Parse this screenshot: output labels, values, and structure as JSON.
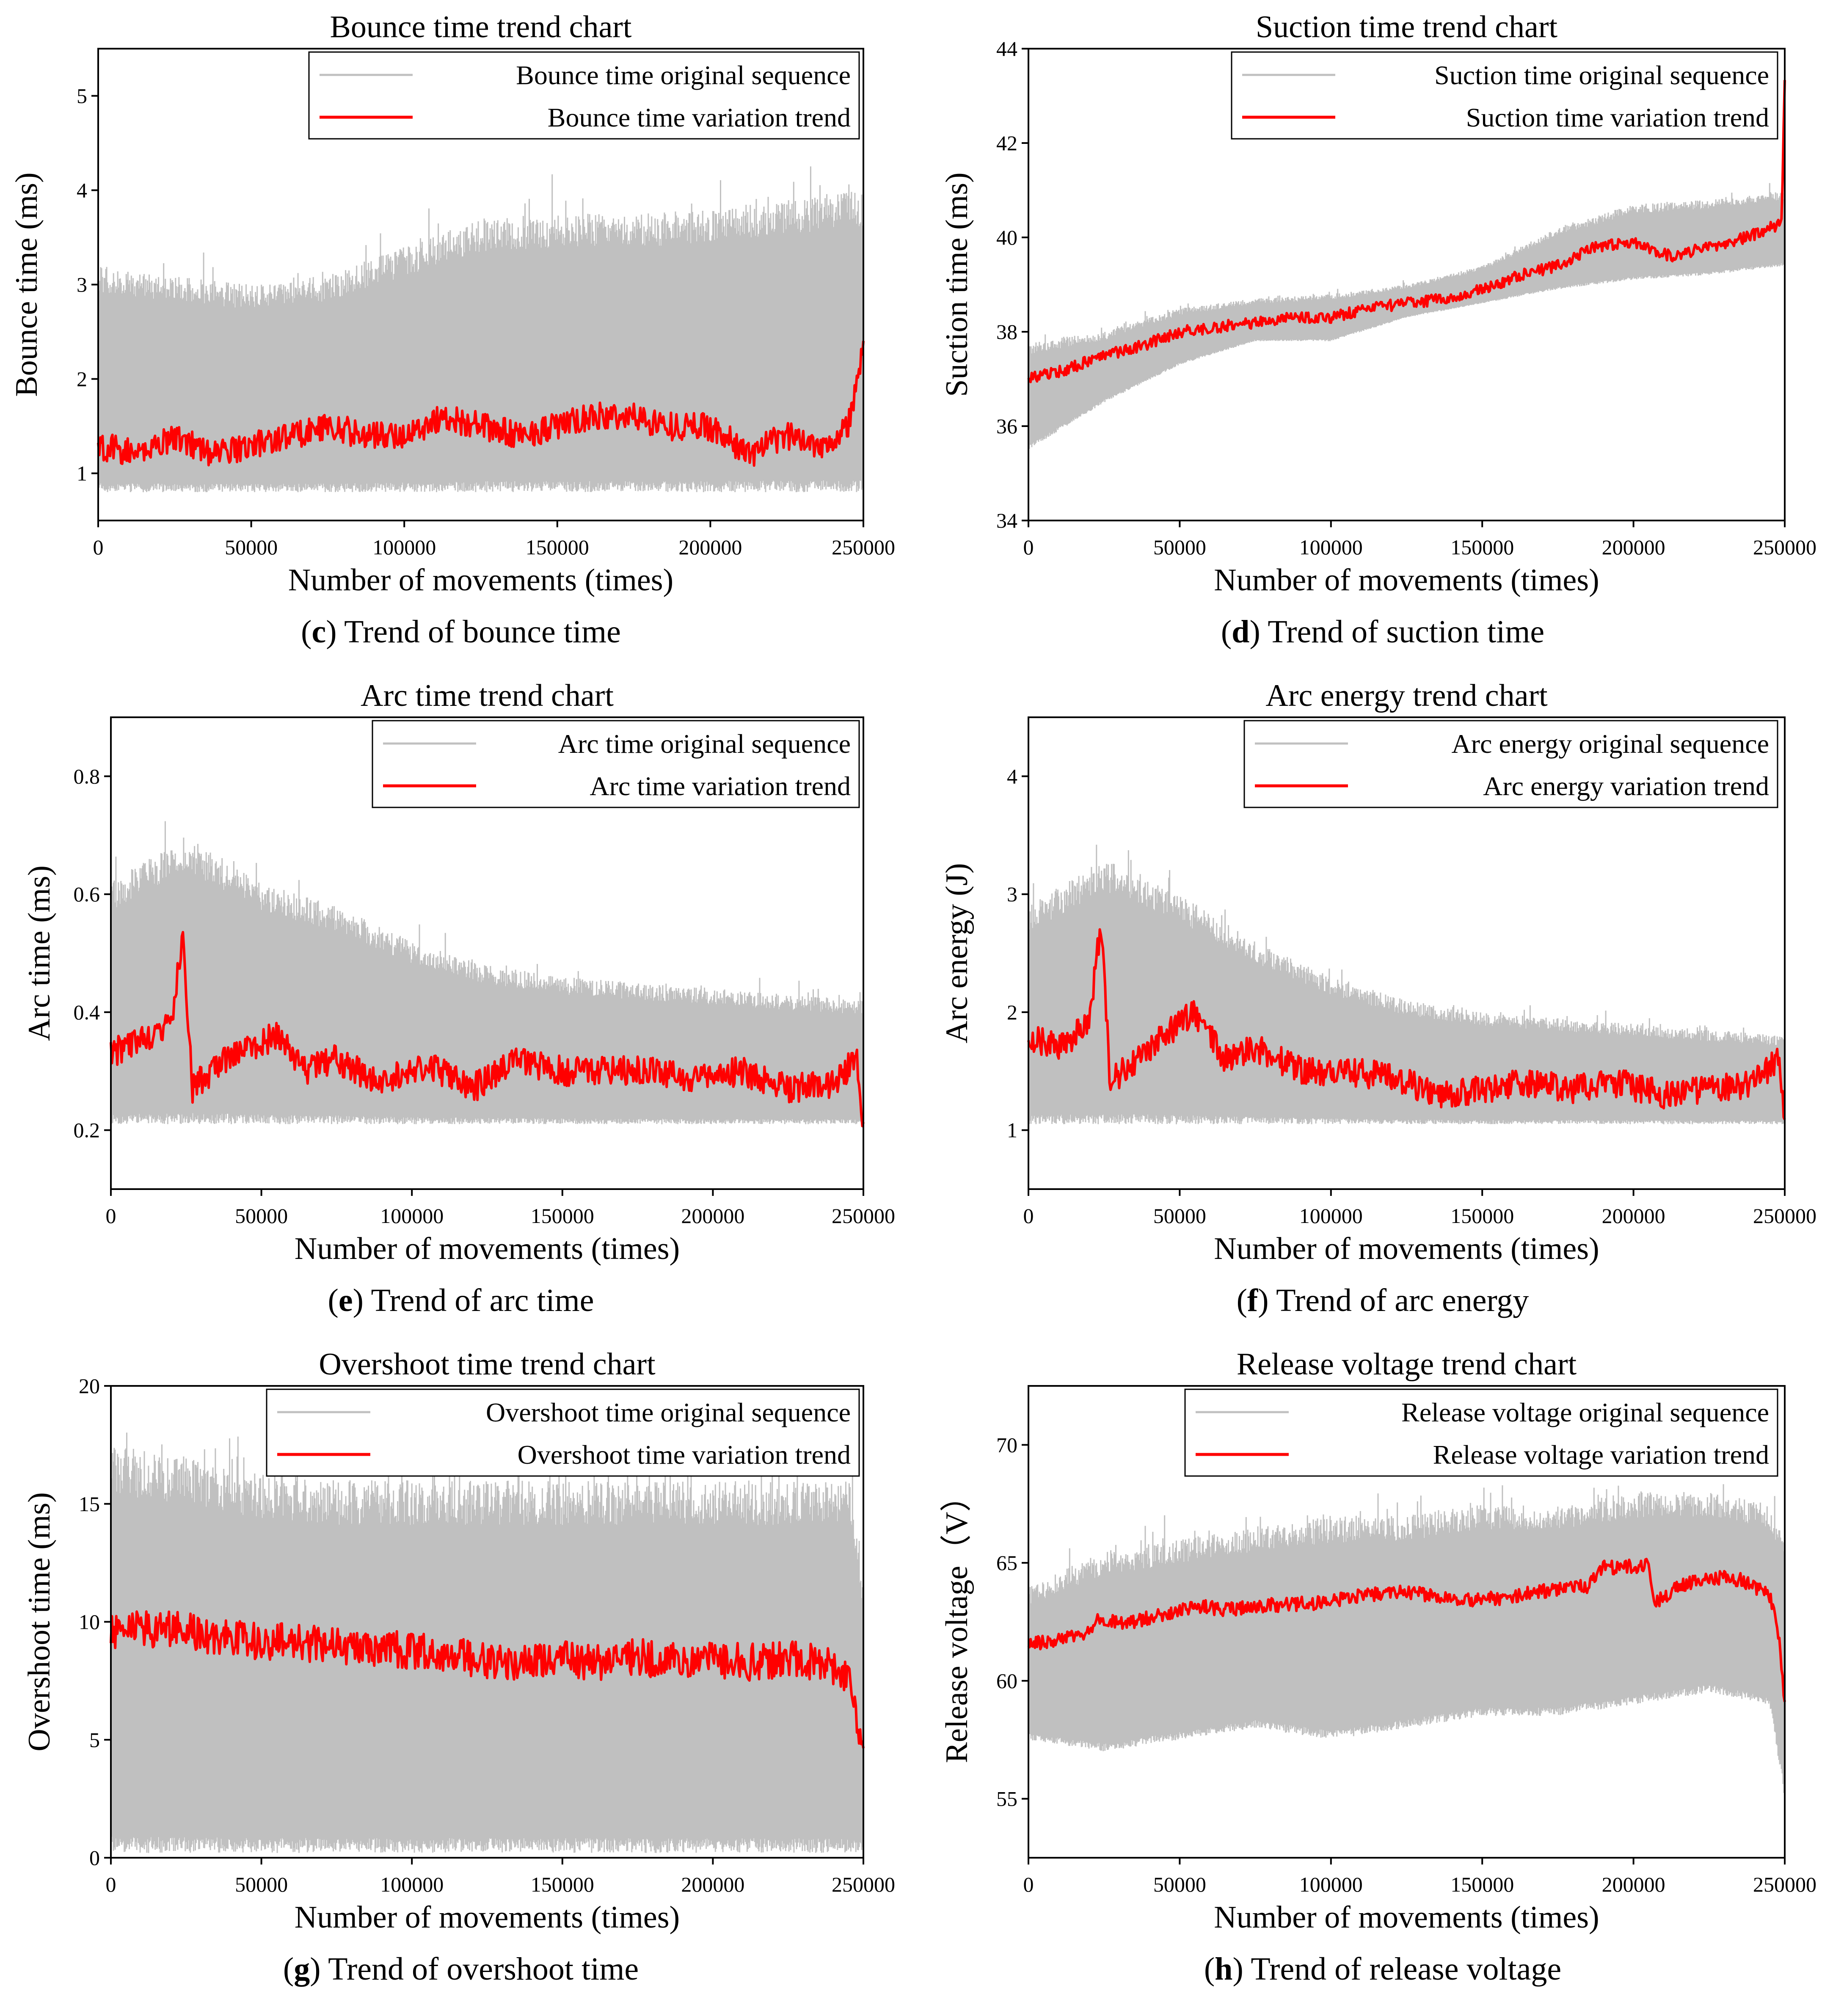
{
  "colors": {
    "original": "#c0c0c0",
    "trend": "#ff0000",
    "axis": "#000000"
  },
  "captions": [
    {
      "letter": "c",
      "text": " Trend of bounce time"
    },
    {
      "letter": "d",
      "text": " Trend of suction time"
    },
    {
      "letter": "e",
      "text": " Trend of arc time"
    },
    {
      "letter": "f",
      "text": " Trend of arc energy"
    },
    {
      "letter": "g",
      "text": " Trend of overshoot time"
    },
    {
      "letter": "h",
      "text": " Trend of release voltage"
    }
  ],
  "chart_data": [
    {
      "type": "line",
      "title": "Bounce time trend chart",
      "xlabel": "Number of movements (times)",
      "ylabel": "Bounce time (ms)",
      "xlim": [
        0,
        250000
      ],
      "ylim": [
        0.5,
        5.5
      ],
      "xticks": [
        0,
        50000,
        100000,
        150000,
        200000,
        250000
      ],
      "yticks": [
        1,
        2,
        3,
        4,
        5
      ],
      "legend_position": "top-right",
      "series": [
        {
          "name": "Bounce time original sequence",
          "style": "band",
          "x": [
            0,
            25000,
            50000,
            75000,
            100000,
            125000,
            150000,
            175000,
            200000,
            225000,
            250000
          ],
          "low": [
            0.8,
            0.8,
            0.8,
            0.8,
            0.8,
            0.8,
            0.8,
            0.8,
            0.8,
            0.8,
            0.8
          ],
          "high": [
            3.2,
            3.1,
            3.0,
            3.1,
            3.4,
            3.7,
            3.75,
            3.75,
            3.8,
            3.9,
            4.0
          ]
        },
        {
          "name": "Bounce time variation trend",
          "style": "line",
          "x": [
            0,
            12500,
            25000,
            37500,
            50000,
            62500,
            75000,
            87500,
            100000,
            112500,
            125000,
            137500,
            150000,
            162500,
            175000,
            187500,
            200000,
            212500,
            225000,
            237500,
            245000,
            250000
          ],
          "y": [
            1.3,
            1.2,
            1.4,
            1.2,
            1.3,
            1.4,
            1.5,
            1.4,
            1.4,
            1.6,
            1.5,
            1.4,
            1.5,
            1.6,
            1.6,
            1.5,
            1.5,
            1.2,
            1.4,
            1.3,
            1.5,
            2.3
          ],
          "noise": 0.15
        }
      ]
    },
    {
      "type": "line",
      "title": "Suction time trend chart",
      "xlabel": "Number of movements (times)",
      "ylabel": "Suction time (ms)",
      "xlim": [
        0,
        250000
      ],
      "ylim": [
        34,
        44
      ],
      "xticks": [
        0,
        50000,
        100000,
        150000,
        200000,
        250000
      ],
      "yticks": [
        34,
        36,
        38,
        40,
        42,
        44
      ],
      "legend_position": "top-right",
      "series": [
        {
          "name": "Suction time original sequence",
          "style": "band",
          "x": [
            0,
            25000,
            50000,
            75000,
            100000,
            125000,
            150000,
            175000,
            200000,
            225000,
            250000
          ],
          "low": [
            35.5,
            36.5,
            37.3,
            37.8,
            37.8,
            38.3,
            38.6,
            38.9,
            39.1,
            39.2,
            39.4
          ],
          "high": [
            37.8,
            38.0,
            38.5,
            38.7,
            38.8,
            39.0,
            39.4,
            40.2,
            40.7,
            40.8,
            41.0
          ]
        },
        {
          "name": "Suction time variation trend",
          "style": "line",
          "x": [
            0,
            12500,
            25000,
            37500,
            50000,
            62500,
            75000,
            87500,
            100000,
            112500,
            125000,
            137500,
            150000,
            162500,
            175000,
            187500,
            200000,
            212500,
            225000,
            237500,
            245000,
            249000,
            250000
          ],
          "y": [
            37.0,
            37.2,
            37.5,
            37.7,
            38.0,
            38.1,
            38.2,
            38.3,
            38.3,
            38.5,
            38.6,
            38.7,
            38.9,
            39.2,
            39.4,
            39.8,
            39.9,
            39.6,
            39.8,
            40.0,
            40.2,
            40.3,
            43.4
          ],
          "noise": 0.12
        }
      ]
    },
    {
      "type": "line",
      "title": "Arc time trend chart",
      "xlabel": "Number of movements (times)",
      "ylabel": "Arc time (ms)",
      "xlim": [
        0,
        250000
      ],
      "ylim": [
        0.1,
        0.9
      ],
      "xticks": [
        0,
        50000,
        100000,
        150000,
        200000,
        250000
      ],
      "yticks": [
        0.2,
        0.4,
        0.6,
        0.8
      ],
      "legend_position": "top-right",
      "series": [
        {
          "name": "Arc time original sequence",
          "style": "band",
          "x": [
            0,
            25000,
            50000,
            75000,
            100000,
            125000,
            150000,
            175000,
            200000,
            225000,
            250000
          ],
          "low": [
            0.21,
            0.21,
            0.21,
            0.21,
            0.21,
            0.21,
            0.21,
            0.21,
            0.21,
            0.21,
            0.21
          ],
          "high": [
            0.62,
            0.7,
            0.62,
            0.58,
            0.52,
            0.48,
            0.46,
            0.45,
            0.44,
            0.43,
            0.42
          ]
        },
        {
          "name": "Arc time variation trend",
          "style": "line",
          "x": [
            0,
            10000,
            20000,
            24000,
            27000,
            40000,
            55000,
            65000,
            75000,
            90000,
            105000,
            120000,
            135000,
            150000,
            165000,
            180000,
            195000,
            210000,
            225000,
            240000,
            248000,
            250000
          ],
          "y": [
            0.33,
            0.35,
            0.38,
            0.53,
            0.27,
            0.33,
            0.36,
            0.3,
            0.32,
            0.28,
            0.31,
            0.27,
            0.32,
            0.3,
            0.3,
            0.3,
            0.29,
            0.3,
            0.27,
            0.28,
            0.32,
            0.2
          ],
          "noise": 0.025
        }
      ]
    },
    {
      "type": "line",
      "title": "Arc energy trend chart",
      "xlabel": "Number of movements (times)",
      "ylabel": "Arc energy (J)",
      "xlim": [
        0,
        250000
      ],
      "ylim": [
        0.5,
        4.5
      ],
      "xticks": [
        0,
        50000,
        100000,
        150000,
        200000,
        250000
      ],
      "yticks": [
        1,
        2,
        3,
        4
      ],
      "legend_position": "top-right",
      "series": [
        {
          "name": "Arc energy original sequence",
          "style": "band",
          "x": [
            0,
            25000,
            50000,
            75000,
            100000,
            125000,
            150000,
            175000,
            200000,
            225000,
            250000
          ],
          "low": [
            1.05,
            1.05,
            1.05,
            1.05,
            1.05,
            1.05,
            1.05,
            1.05,
            1.05,
            1.05,
            1.05
          ],
          "high": [
            2.9,
            3.3,
            3.0,
            2.6,
            2.3,
            2.1,
            2.0,
            1.95,
            1.9,
            1.85,
            1.8
          ]
        },
        {
          "name": "Arc energy variation trend",
          "style": "line",
          "x": [
            0,
            10000,
            20000,
            24000,
            27000,
            40000,
            55000,
            65000,
            75000,
            90000,
            105000,
            120000,
            135000,
            150000,
            165000,
            180000,
            195000,
            210000,
            225000,
            240000,
            248000,
            250000
          ],
          "y": [
            1.8,
            1.7,
            1.9,
            2.75,
            1.4,
            1.7,
            2.0,
            1.6,
            1.7,
            1.5,
            1.5,
            1.45,
            1.3,
            1.35,
            1.4,
            1.35,
            1.4,
            1.3,
            1.35,
            1.4,
            1.6,
            1.0
          ],
          "noise": 0.12
        }
      ]
    },
    {
      "type": "line",
      "title": "Overshoot time trend chart",
      "xlabel": "Number of movements (times)",
      "ylabel": "Overshoot time (ms)",
      "xlim": [
        0,
        250000
      ],
      "ylim": [
        0,
        20
      ],
      "xticks": [
        0,
        50000,
        100000,
        150000,
        200000,
        250000
      ],
      "yticks": [
        0,
        5,
        10,
        15,
        20
      ],
      "legend_position": "top-right",
      "series": [
        {
          "name": "Overshoot time original sequence",
          "style": "band",
          "x": [
            0,
            25000,
            50000,
            75000,
            100000,
            125000,
            150000,
            175000,
            200000,
            225000,
            245000,
            250000
          ],
          "low": [
            0.2,
            0.2,
            0.2,
            0.2,
            0.2,
            0.2,
            0.2,
            0.2,
            0.2,
            0.2,
            0.2,
            0.2
          ],
          "high": [
            17.5,
            17.0,
            16.3,
            16.0,
            16.0,
            16.0,
            16.0,
            16.0,
            16.0,
            16.0,
            16.0,
            12.0
          ]
        },
        {
          "name": "Overshoot time variation trend",
          "style": "line",
          "x": [
            0,
            12500,
            25000,
            37500,
            50000,
            62500,
            75000,
            87500,
            100000,
            112500,
            125000,
            137500,
            150000,
            162500,
            175000,
            187500,
            200000,
            212500,
            225000,
            237500,
            245000,
            250000
          ],
          "y": [
            9.5,
            9.7,
            9.6,
            9.3,
            9.2,
            9.1,
            9.0,
            8.9,
            8.8,
            8.7,
            8.3,
            8.2,
            8.4,
            8.3,
            8.5,
            8.3,
            8.4,
            8.3,
            8.4,
            8.2,
            7.8,
            4.5
          ],
          "noise": 0.8
        }
      ]
    },
    {
      "type": "line",
      "title": "Release voltage trend chart",
      "xlabel": "Number of movements (times)",
      "ylabel": "Release voltage（V）",
      "xlim": [
        0,
        250000
      ],
      "ylim": [
        52.5,
        72.5
      ],
      "xticks": [
        0,
        50000,
        100000,
        150000,
        200000,
        250000
      ],
      "yticks": [
        55,
        60,
        65,
        70
      ],
      "legend_position": "top-right",
      "series": [
        {
          "name": "Release voltage original sequence",
          "style": "band",
          "x": [
            0,
            25000,
            50000,
            75000,
            100000,
            125000,
            150000,
            175000,
            200000,
            225000,
            245000,
            250000
          ],
          "low": [
            57.5,
            57.0,
            57.5,
            58.0,
            57.5,
            58.0,
            58.5,
            58.5,
            59.0,
            59.5,
            59.0,
            55.0
          ],
          "high": [
            64.0,
            65.5,
            66.0,
            66.5,
            67.0,
            67.0,
            67.5,
            67.5,
            68.0,
            68.0,
            67.5,
            66.0
          ]
        },
        {
          "name": "Release voltage variation trend",
          "style": "line",
          "x": [
            0,
            10000,
            20000,
            23000,
            30000,
            45000,
            55000,
            65000,
            80000,
            95000,
            110000,
            125000,
            140000,
            155000,
            170000,
            185000,
            190000,
            205000,
            207000,
            215000,
            225000,
            235000,
            245000,
            248000,
            250000
          ],
          "y": [
            61.5,
            61.8,
            62.0,
            62.7,
            62.4,
            62.8,
            63.2,
            63.0,
            63.2,
            63.3,
            63.6,
            63.8,
            63.4,
            63.5,
            63.8,
            64.0,
            64.8,
            64.9,
            63.3,
            64.0,
            64.4,
            64.3,
            63.6,
            62.0,
            59.0
          ],
          "noise": 0.3
        }
      ]
    }
  ]
}
